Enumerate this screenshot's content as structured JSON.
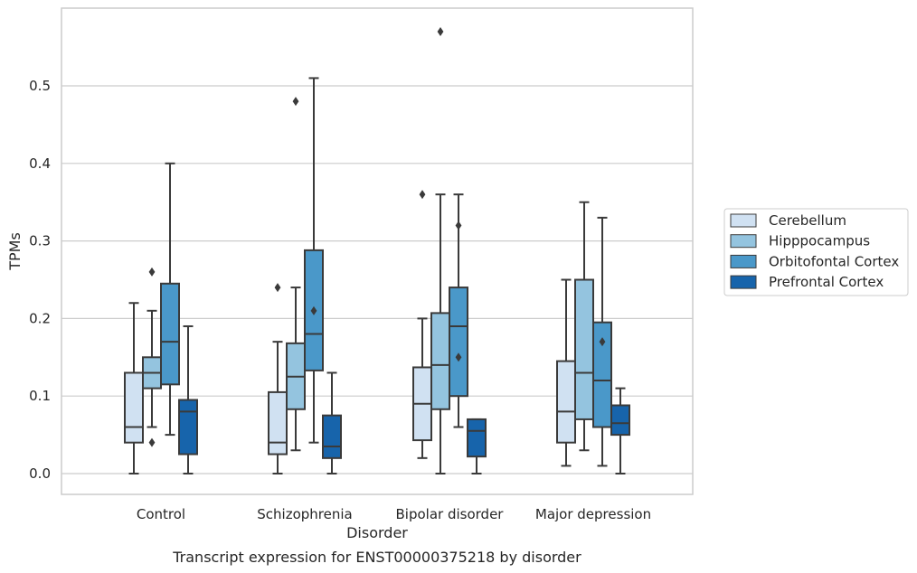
{
  "chart_data": {
    "type": "box",
    "title": "",
    "caption": "Transcript expression for ENST00000375218 by disorder",
    "xlabel": "Disorder",
    "ylabel": "TPMs",
    "ylim": [
      -0.028,
      0.6
    ],
    "yticks": [
      0.0,
      0.1,
      0.2,
      0.3,
      0.4,
      0.5
    ],
    "ytick_labels": [
      "0.0",
      "0.1",
      "0.2",
      "0.3",
      "0.4",
      "0.5"
    ],
    "grid": "horizontal",
    "legend_position": "right, outside plot",
    "categories": [
      "Control",
      "Schizophrenia",
      "Bipolar disorder",
      "Major depression"
    ],
    "series": [
      {
        "name": "Cerebellum",
        "color": "#d0e1f2",
        "boxes": [
          {
            "whisker_low": 0.0,
            "q1": 0.04,
            "median": 0.06,
            "q3": 0.13,
            "whisker_high": 0.22,
            "outliers": []
          },
          {
            "whisker_low": 0.0,
            "q1": 0.025,
            "median": 0.04,
            "q3": 0.105,
            "whisker_high": 0.17,
            "outliers": [
              0.24
            ]
          },
          {
            "whisker_low": 0.02,
            "q1": 0.043,
            "median": 0.09,
            "q3": 0.137,
            "whisker_high": 0.2,
            "outliers": [
              0.36
            ]
          },
          {
            "whisker_low": 0.01,
            "q1": 0.04,
            "median": 0.08,
            "q3": 0.145,
            "whisker_high": 0.25,
            "outliers": []
          }
        ]
      },
      {
        "name": "Hipppocampus",
        "color": "#94c4df",
        "boxes": [
          {
            "whisker_low": 0.06,
            "q1": 0.11,
            "median": 0.13,
            "q3": 0.15,
            "whisker_high": 0.21,
            "outliers": [
              0.04,
              0.26
            ]
          },
          {
            "whisker_low": 0.03,
            "q1": 0.083,
            "median": 0.125,
            "q3": 0.168,
            "whisker_high": 0.24,
            "outliers": [
              0.48
            ]
          },
          {
            "whisker_low": 0.0,
            "q1": 0.083,
            "median": 0.14,
            "q3": 0.207,
            "whisker_high": 0.36,
            "outliers": [
              0.57
            ]
          },
          {
            "whisker_low": 0.03,
            "q1": 0.07,
            "median": 0.13,
            "q3": 0.25,
            "whisker_high": 0.35,
            "outliers": []
          }
        ]
      },
      {
        "name": "Orbitofontal Cortex",
        "color": "#4a98c9",
        "boxes": [
          {
            "whisker_low": 0.05,
            "q1": 0.115,
            "median": 0.17,
            "q3": 0.245,
            "whisker_high": 0.4,
            "outliers": []
          },
          {
            "whisker_low": 0.04,
            "q1": 0.133,
            "median": 0.18,
            "q3": 0.288,
            "whisker_high": 0.51,
            "outliers": [
              0.21
            ]
          },
          {
            "whisker_low": 0.06,
            "q1": 0.1,
            "median": 0.19,
            "q3": 0.24,
            "whisker_high": 0.36,
            "outliers": [
              0.15,
              0.32
            ]
          },
          {
            "whisker_low": 0.01,
            "q1": 0.06,
            "median": 0.12,
            "q3": 0.195,
            "whisker_high": 0.33,
            "outliers": [
              0.17
            ]
          }
        ]
      },
      {
        "name": "Prefrontal Cortex",
        "color": "#1764ab",
        "boxes": [
          {
            "whisker_low": 0.0,
            "q1": 0.025,
            "median": 0.08,
            "q3": 0.095,
            "whisker_high": 0.19,
            "outliers": []
          },
          {
            "whisker_low": 0.0,
            "q1": 0.02,
            "median": 0.035,
            "q3": 0.075,
            "whisker_high": 0.13,
            "outliers": []
          },
          {
            "whisker_low": 0.0,
            "q1": 0.022,
            "median": 0.055,
            "q3": 0.07,
            "whisker_high": 0.07,
            "outliers": []
          },
          {
            "whisker_low": 0.0,
            "q1": 0.05,
            "median": 0.065,
            "q3": 0.088,
            "whisker_high": 0.11,
            "outliers": []
          }
        ]
      }
    ]
  }
}
